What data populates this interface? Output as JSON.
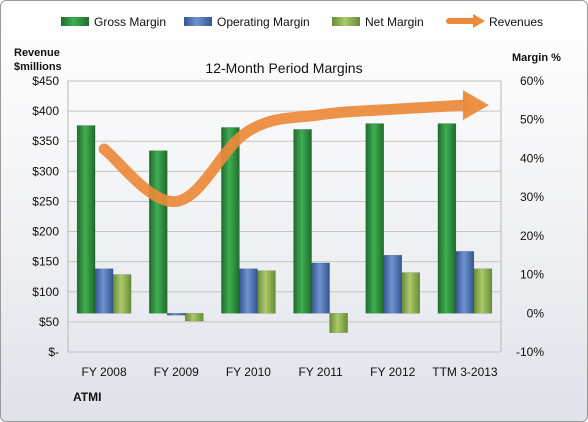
{
  "chart_data": {
    "type": "bar",
    "title": "12-Month Period Margins",
    "company": "ATMI",
    "left_axis": {
      "label_line1": "Revenue",
      "label_line2": "$millions",
      "ylim": [
        0,
        450
      ],
      "ticks": [
        "$-",
        "$50",
        "$100",
        "$150",
        "$200",
        "$250",
        "$300",
        "$350",
        "$400",
        "$450"
      ]
    },
    "right_axis": {
      "label": "Margin %",
      "ylim": [
        -10,
        60
      ],
      "ticks": [
        "-10%",
        "0%",
        "10%",
        "20%",
        "30%",
        "40%",
        "50%",
        "60%"
      ]
    },
    "categories": [
      "FY 2008",
      "FY 2009",
      "FY 2010",
      "FY 2011",
      "FY 2012",
      "TTM 3-2013"
    ],
    "series": [
      {
        "name": "Gross Margin",
        "axis": "right",
        "kind": "bar",
        "color": "#2e8b3e",
        "values": [
          48.5,
          42,
          48,
          47.5,
          49,
          49
        ]
      },
      {
        "name": "Operating Margin",
        "axis": "right",
        "kind": "bar",
        "color": "#4f75b8",
        "values": [
          11.5,
          -0.5,
          11.5,
          13,
          15,
          16
        ]
      },
      {
        "name": "Net Margin",
        "axis": "right",
        "kind": "bar",
        "color": "#8fb34f",
        "values": [
          10,
          -2,
          11,
          -5,
          10.5,
          11.5
        ]
      },
      {
        "name": "Revenues",
        "axis": "left",
        "kind": "line",
        "color": "#ec8a3a",
        "values": [
          337,
          250,
          367,
          394,
          403,
          410
        ]
      }
    ],
    "legend_position": "top",
    "grid": true
  }
}
